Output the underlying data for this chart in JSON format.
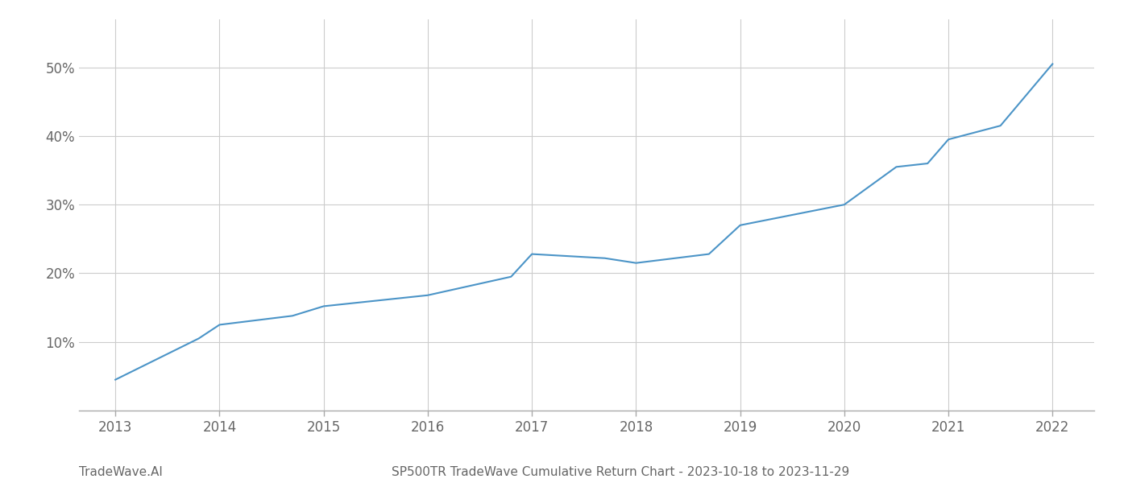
{
  "x": [
    2013,
    2013.8,
    2014,
    2014.7,
    2015,
    2016,
    2016.8,
    2017,
    2017.7,
    2018,
    2018.7,
    2019,
    2019.5,
    2020,
    2020.5,
    2020.8,
    2021,
    2021.5,
    2022
  ],
  "y": [
    0.045,
    0.105,
    0.125,
    0.138,
    0.152,
    0.168,
    0.195,
    0.228,
    0.222,
    0.215,
    0.228,
    0.27,
    0.285,
    0.3,
    0.355,
    0.36,
    0.395,
    0.415,
    0.505
  ],
  "line_color": "#4b94c7",
  "line_width": 1.5,
  "title": "SP500TR TradeWave Cumulative Return Chart - 2023-10-18 to 2023-11-29",
  "footer_left": "TradeWave.AI",
  "background_color": "#ffffff",
  "grid_color": "#cccccc",
  "yticks": [
    0.1,
    0.2,
    0.3,
    0.4,
    0.5
  ],
  "ytick_labels": [
    "10%",
    "20%",
    "30%",
    "40%",
    "50%"
  ],
  "xticks": [
    2013,
    2014,
    2015,
    2016,
    2017,
    2018,
    2019,
    2020,
    2021,
    2022
  ],
  "xlim": [
    2012.65,
    2022.4
  ],
  "ylim": [
    0.0,
    0.57
  ],
  "axis_label_color": "#666666",
  "tick_label_fontsize": 12,
  "title_fontsize": 11,
  "footer_fontsize": 11
}
